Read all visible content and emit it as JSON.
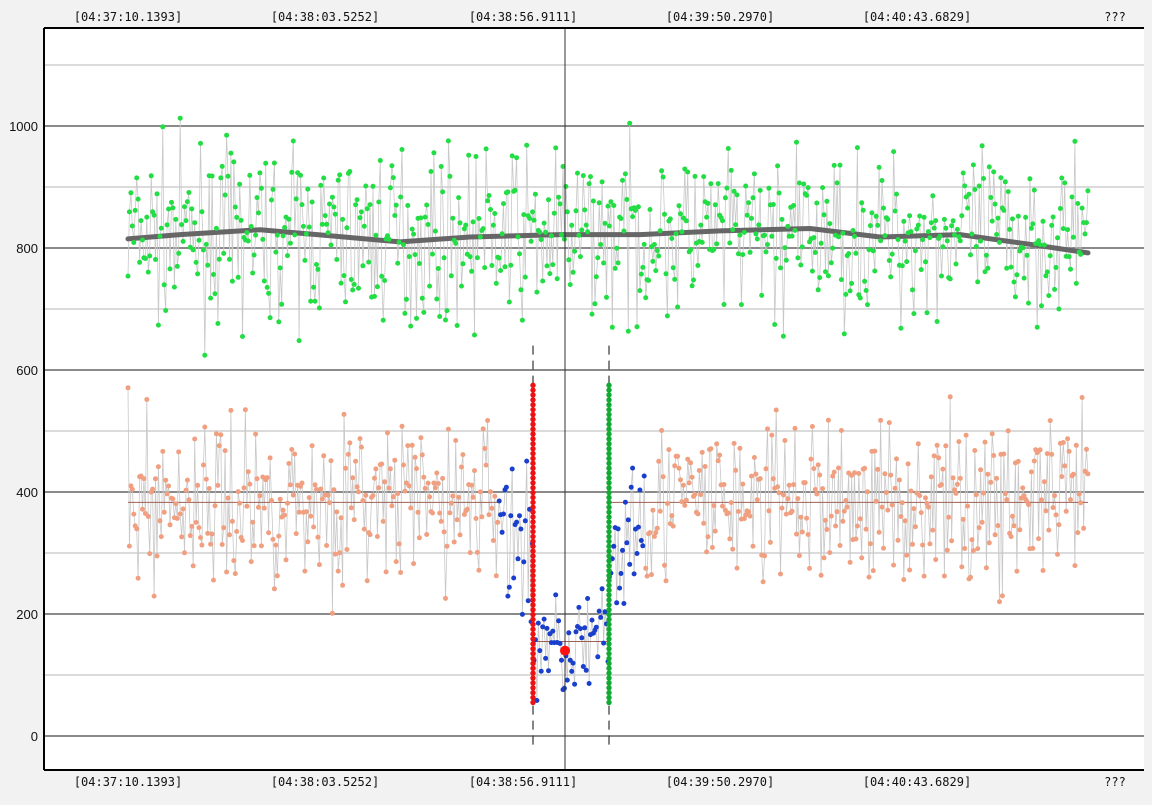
{
  "chart_data": {
    "type": "scatter",
    "title": "",
    "xlabel": "",
    "ylabel": "",
    "x_tick_labels": [
      "[04:37:10.1393]",
      "[04:38:03.5252]",
      "[04:38:56.9111]",
      "[04:39:50.2970]",
      "[04:40:43.6829]",
      "???"
    ],
    "y_ticks": [
      0,
      200,
      400,
      600,
      800,
      1000
    ],
    "ylim": [
      -55,
      1160
    ],
    "grid": true,
    "cursor_x": 565,
    "selection": {
      "start": 533,
      "end": 609,
      "mean_value": 155,
      "marker": {
        "x": 565,
        "y": 140
      }
    },
    "series": [
      {
        "name": "",
        "color": "#22dd44",
        "mean": 820,
        "spread": 95
      },
      {
        "name": "",
        "color": "#f0a080",
        "mean": 383,
        "spread": 95
      },
      {
        "name": "",
        "color": "#1a3fcc",
        "mean": 150,
        "spread": 60
      },
      {
        "name": "",
        "color": "#666666",
        "kind": "trend",
        "values": [
          [
            128,
            815
          ],
          [
            180,
            822
          ],
          [
            260,
            830
          ],
          [
            330,
            820
          ],
          [
            400,
            810
          ],
          [
            470,
            818
          ],
          [
            560,
            822
          ],
          [
            640,
            822
          ],
          [
            720,
            828
          ],
          [
            810,
            832
          ],
          [
            880,
            818
          ],
          [
            960,
            822
          ],
          [
            1030,
            806
          ],
          [
            1088,
            792
          ]
        ]
      }
    ],
    "reference_lines": [
      {
        "value": 383,
        "from": 128,
        "to": 500
      },
      {
        "value": 383,
        "from": 609,
        "to": 1088
      }
    ]
  }
}
